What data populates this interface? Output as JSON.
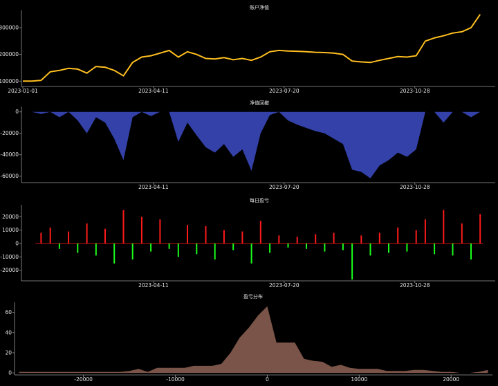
{
  "chart_data": [
    {
      "type": "line",
      "title": "账户净值",
      "x_ticks": [
        "2023-01-01",
        "2023-04-11",
        "2023-07-20",
        "2023-10-28"
      ],
      "y_ticks": [
        100000,
        200000,
        300000
      ],
      "ylim": [
        80000,
        365000
      ],
      "color": "#ffbf1f",
      "series": [
        {
          "dates": [
            "2023-01-01",
            "2023-01-08",
            "2023-01-15",
            "2023-01-22",
            "2023-01-29",
            "2023-02-05",
            "2023-02-12",
            "2023-02-19",
            "2023-02-26",
            "2023-03-05",
            "2023-03-12",
            "2023-03-19",
            "2023-03-26",
            "2023-04-02",
            "2023-04-09",
            "2023-04-16",
            "2023-04-23",
            "2023-04-30",
            "2023-05-07",
            "2023-05-14",
            "2023-05-21",
            "2023-05-28",
            "2023-06-04",
            "2023-06-11",
            "2023-06-18",
            "2023-06-25",
            "2023-07-02",
            "2023-07-09",
            "2023-07-16",
            "2023-07-23",
            "2023-07-30",
            "2023-08-06",
            "2023-08-13",
            "2023-08-20",
            "2023-08-27",
            "2023-09-03",
            "2023-09-10",
            "2023-09-17",
            "2023-09-24",
            "2023-10-01",
            "2023-10-08",
            "2023-10-15",
            "2023-10-22",
            "2023-10-29",
            "2023-11-05",
            "2023-11-12",
            "2023-11-19",
            "2023-11-26",
            "2023-12-03",
            "2023-12-10",
            "2023-12-17"
          ],
          "values": [
            100000,
            100000,
            103000,
            135000,
            140000,
            148000,
            145000,
            130000,
            155000,
            152000,
            140000,
            120000,
            170000,
            190000,
            195000,
            205000,
            215000,
            190000,
            210000,
            200000,
            185000,
            183000,
            188000,
            180000,
            185000,
            178000,
            190000,
            210000,
            215000,
            213000,
            212000,
            210000,
            208000,
            207000,
            205000,
            200000,
            175000,
            172000,
            170000,
            178000,
            185000,
            192000,
            190000,
            195000,
            250000,
            262000,
            270000,
            280000,
            285000,
            300000,
            350000
          ]
        }
      ]
    },
    {
      "type": "area",
      "title": "净值回撤",
      "x_ticks": [
        "2023-04-11",
        "2023-07-20",
        "2023-10-28"
      ],
      "y_ticks": [
        0,
        -20000,
        -40000,
        -60000
      ],
      "ylim": [
        -66000,
        5000
      ],
      "color": "#3341a8",
      "series": [
        {
          "dates": [
            "2023-01-01",
            "2023-01-08",
            "2023-01-15",
            "2023-01-22",
            "2023-01-29",
            "2023-02-05",
            "2023-02-12",
            "2023-02-19",
            "2023-02-26",
            "2023-03-05",
            "2023-03-12",
            "2023-03-19",
            "2023-03-26",
            "2023-04-02",
            "2023-04-09",
            "2023-04-16",
            "2023-04-23",
            "2023-04-30",
            "2023-05-07",
            "2023-05-14",
            "2023-05-21",
            "2023-05-28",
            "2023-06-04",
            "2023-06-11",
            "2023-06-18",
            "2023-06-25",
            "2023-07-02",
            "2023-07-09",
            "2023-07-16",
            "2023-07-23",
            "2023-07-30",
            "2023-08-06",
            "2023-08-13",
            "2023-08-20",
            "2023-08-27",
            "2023-09-03",
            "2023-09-10",
            "2023-09-17",
            "2023-09-24",
            "2023-10-01",
            "2023-10-08",
            "2023-10-15",
            "2023-10-22",
            "2023-10-29",
            "2023-11-05",
            "2023-11-12",
            "2023-11-19",
            "2023-11-26",
            "2023-12-03",
            "2023-12-10",
            "2023-12-17"
          ],
          "values": [
            0,
            0,
            -2000,
            0,
            -5000,
            0,
            -8000,
            -20000,
            -5000,
            -10000,
            -25000,
            -45000,
            -5000,
            0,
            -4000,
            0,
            0,
            -28000,
            -10000,
            -22000,
            -33000,
            -38000,
            -30000,
            -42000,
            -35000,
            -55000,
            -20000,
            -3000,
            0,
            -8000,
            -12000,
            -15000,
            -18000,
            -20000,
            -25000,
            -30000,
            -54000,
            -56000,
            -62000,
            -50000,
            -45000,
            -38000,
            -42000,
            -35000,
            0,
            0,
            -10000,
            0,
            0,
            -5000,
            0
          ]
        }
      ]
    },
    {
      "type": "bar",
      "title": "每日盈亏",
      "x_ticks": [
        "2023-04-11",
        "2023-07-20",
        "2023-10-28"
      ],
      "y_ticks": [
        20000,
        10000,
        0,
        -10000,
        -20000
      ],
      "ylim": [
        -28000,
        29000
      ],
      "positive_color": "#ff1a1a",
      "negative_color": "#1aff1a",
      "series": [
        {
          "dates": [
            "2023-01-15",
            "2023-01-22",
            "2023-01-29",
            "2023-02-05",
            "2023-02-12",
            "2023-02-19",
            "2023-02-26",
            "2023-03-05",
            "2023-03-12",
            "2023-03-19",
            "2023-03-26",
            "2023-04-02",
            "2023-04-09",
            "2023-04-16",
            "2023-04-23",
            "2023-04-30",
            "2023-05-07",
            "2023-05-14",
            "2023-05-21",
            "2023-05-28",
            "2023-06-04",
            "2023-06-11",
            "2023-06-18",
            "2023-06-25",
            "2023-07-02",
            "2023-07-09",
            "2023-07-16",
            "2023-07-23",
            "2023-07-30",
            "2023-08-06",
            "2023-08-13",
            "2023-08-20",
            "2023-08-27",
            "2023-09-03",
            "2023-09-10",
            "2023-09-17",
            "2023-09-24",
            "2023-10-01",
            "2023-10-08",
            "2023-10-15",
            "2023-10-22",
            "2023-10-29",
            "2023-11-05",
            "2023-11-12",
            "2023-11-19",
            "2023-11-26",
            "2023-12-03",
            "2023-12-10",
            "2023-12-17"
          ],
          "values": [
            8000,
            12000,
            -4000,
            9000,
            -7000,
            15000,
            -9000,
            11000,
            -15000,
            25000,
            -12000,
            20000,
            -6000,
            18000,
            -4000,
            -10000,
            14000,
            -8000,
            13000,
            -12000,
            10000,
            -5000,
            9000,
            -15000,
            17000,
            -7000,
            6000,
            -3000,
            5000,
            -4000,
            7000,
            -6000,
            8000,
            -5000,
            -27000,
            6000,
            -9000,
            8000,
            -7000,
            12000,
            -6000,
            10000,
            18000,
            -8000,
            25000,
            -9000,
            15000,
            -12000,
            22000
          ]
        }
      ]
    },
    {
      "type": "area",
      "title": "盈亏分布",
      "x_ticks": [
        -20000,
        -10000,
        0,
        10000,
        20000
      ],
      "y_ticks": [
        0,
        20,
        40,
        60
      ],
      "xlim": [
        -27500,
        24500
      ],
      "ylim": [
        -2,
        70
      ],
      "color": "#7a5448",
      "series": [
        {
          "x": [
            -27000,
            -26000,
            -25000,
            -24000,
            -23000,
            -22000,
            -21000,
            -20000,
            -19000,
            -18000,
            -17000,
            -16000,
            -15000,
            -14000,
            -13000,
            -12000,
            -11000,
            -10000,
            -9000,
            -8000,
            -7000,
            -6000,
            -5000,
            -4000,
            -3000,
            -2000,
            -1000,
            0,
            1000,
            2000,
            3000,
            4000,
            5000,
            6000,
            7000,
            8000,
            9000,
            10000,
            11000,
            12000,
            13000,
            14000,
            15000,
            16000,
            17000,
            18000,
            19000,
            20000,
            21000,
            22000,
            23000,
            24000
          ],
          "y": [
            1,
            1,
            1,
            1,
            1,
            1,
            1,
            1,
            1,
            1,
            1,
            1,
            2,
            4,
            1,
            5,
            5,
            5,
            5,
            7,
            7,
            7,
            9,
            20,
            35,
            45,
            57,
            66,
            30,
            30,
            30,
            14,
            12,
            11,
            6,
            8,
            5,
            4,
            4,
            4,
            2,
            2,
            2,
            3,
            3,
            2,
            1,
            1,
            0,
            0,
            1,
            3
          ]
        }
      ]
    }
  ]
}
